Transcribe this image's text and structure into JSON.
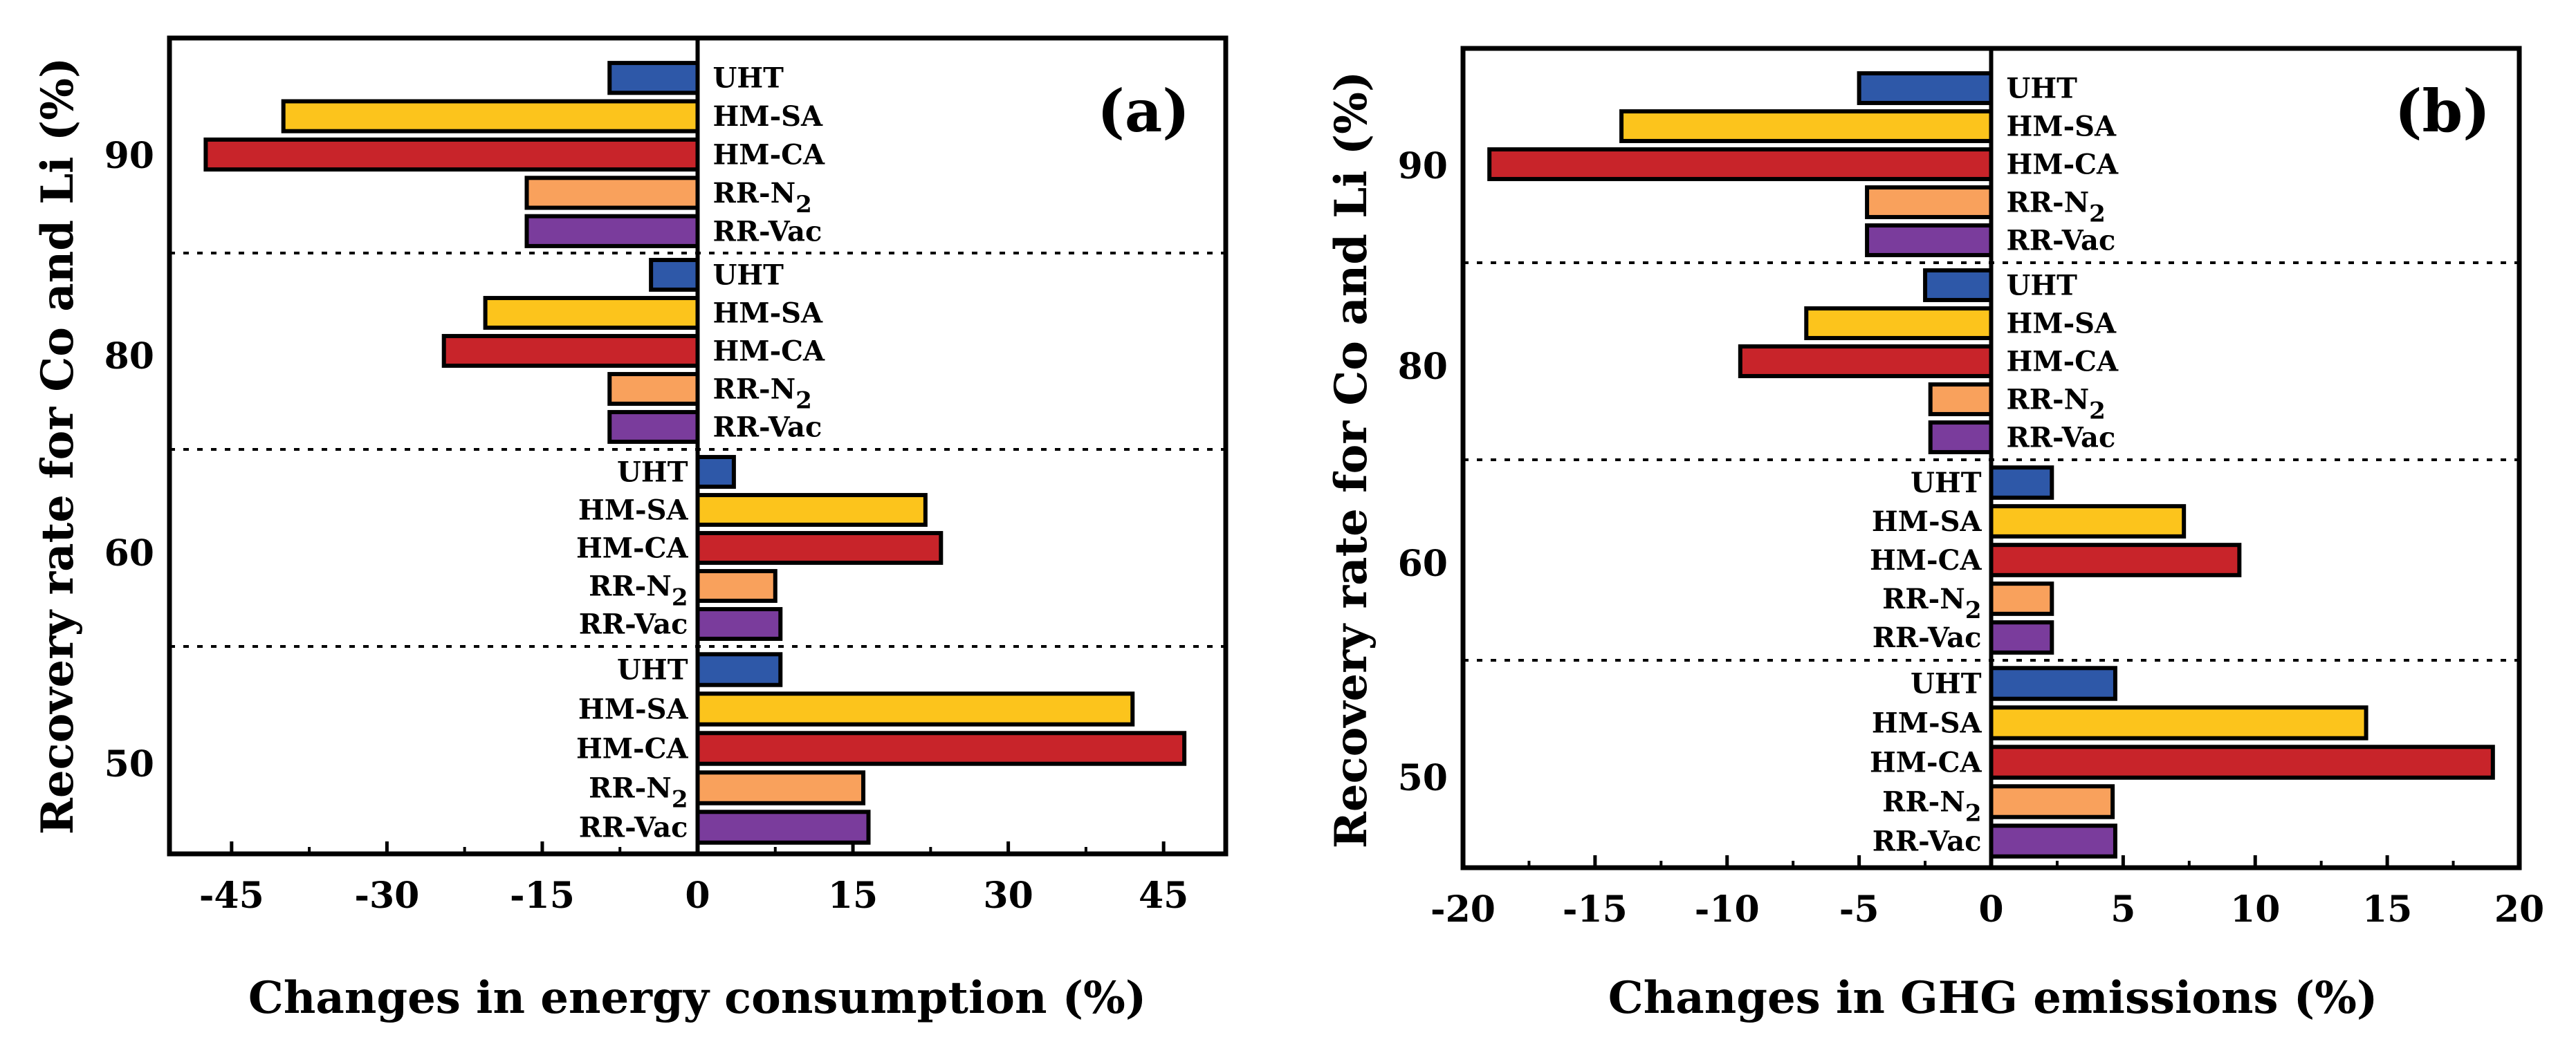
{
  "chart_data": [
    {
      "type": "bar",
      "orientation": "horizontal",
      "panel_label": "(a)",
      "xlabel": "Changes in energy consumption (%)",
      "ylabel": "Recovery rate for Co and Li (%)",
      "xlim": [
        -51,
        51
      ],
      "xticks": [
        "-45",
        "-30",
        "-15",
        "0",
        "15",
        "30",
        "45"
      ],
      "xtick_values": [
        -45,
        -30,
        -15,
        0,
        15,
        30,
        45
      ],
      "groups": [
        {
          "label": "90",
          "values": [
            -8.5,
            -40,
            -47.5,
            -16.5,
            -16.5
          ]
        },
        {
          "label": "80",
          "values": [
            -4.5,
            -20.5,
            -24.5,
            -8.5,
            -8.5
          ]
        },
        {
          "label": "60",
          "values": [
            3.5,
            22,
            23.5,
            7.5,
            8
          ]
        },
        {
          "label": "50",
          "values": [
            8,
            42,
            47,
            16,
            16.5
          ]
        }
      ],
      "legend": "none"
    },
    {
      "type": "bar",
      "orientation": "horizontal",
      "panel_label": "(b)",
      "xlabel": "Changes in GHG emissions (%)",
      "ylabel": "Recovery rate for Co and Li (%)",
      "xlim": [
        -20,
        20
      ],
      "xticks": [
        "-20",
        "-15",
        "-10",
        "-5",
        "0",
        "5",
        "10",
        "15",
        "20"
      ],
      "xtick_values": [
        -20,
        -15,
        -10,
        -5,
        0,
        5,
        10,
        15,
        20
      ],
      "groups": [
        {
          "label": "90",
          "values": [
            -5,
            -14,
            -19,
            -4.7,
            -4.7
          ]
        },
        {
          "label": "80",
          "values": [
            -2.5,
            -7,
            -9.5,
            -2.3,
            -2.3
          ]
        },
        {
          "label": "60",
          "values": [
            2.3,
            7.3,
            9.4,
            2.3,
            2.3
          ]
        },
        {
          "label": "50",
          "values": [
            4.7,
            14.2,
            19,
            4.6,
            4.7
          ]
        }
      ],
      "legend": "none"
    }
  ],
  "series": [
    {
      "name": "UHT",
      "label_main": "UHT",
      "label_sub": "",
      "color": "#2e58a8"
    },
    {
      "name": "HM-SA",
      "label_main": "HM-SA",
      "label_sub": "",
      "color": "#fcc41c"
    },
    {
      "name": "HM-CA",
      "label_main": "HM-CA",
      "label_sub": "",
      "color": "#c8242a"
    },
    {
      "name": "RR-N2",
      "label_main": "RR-N",
      "label_sub": "2",
      "color": "#f9a15c"
    },
    {
      "name": "RR-Vac",
      "label_main": "RR-Vac",
      "label_sub": "",
      "color": "#7a3c9c"
    }
  ]
}
